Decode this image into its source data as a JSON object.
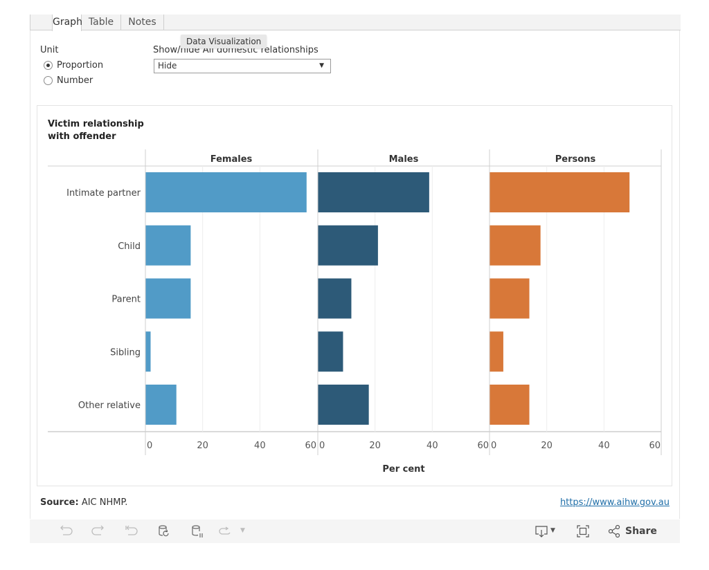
{
  "tabs": [
    {
      "label": "Graph",
      "active": true
    },
    {
      "label": "Table",
      "active": false
    },
    {
      "label": "Notes",
      "active": false
    }
  ],
  "tooltip": "Data Visualization",
  "controls": {
    "unit_label": "Unit",
    "unit_options": [
      {
        "label": "Proportion",
        "checked": true
      },
      {
        "label": "Number",
        "checked": false
      }
    ],
    "toggle_label": "Show/hide All domestic relationships",
    "toggle_value": "Hide"
  },
  "chart_data": {
    "type": "bar",
    "orientation": "horizontal",
    "row_header": "Victim relationship with offender",
    "row_header_lines": [
      "Victim relationship",
      "with offender"
    ],
    "categories": [
      "Intimate partner",
      "Child",
      "Parent",
      "Sibling",
      "Other relative"
    ],
    "series": [
      {
        "name": "Females",
        "color": "#519bc7",
        "values": [
          56.2,
          15.7,
          15.7,
          1.7,
          10.7
        ]
      },
      {
        "name": "Males",
        "color": "#2d5a78",
        "values": [
          38.8,
          20.9,
          11.6,
          8.7,
          17.7
        ]
      },
      {
        "name": "Persons",
        "color": "#d87839",
        "values": [
          48.8,
          17.7,
          13.8,
          4.7,
          13.8
        ]
      }
    ],
    "xlabel": "Per cent",
    "xlim": [
      0,
      60
    ],
    "xticks": [
      0,
      20,
      40,
      60
    ],
    "grid": true,
    "legend": "none"
  },
  "footer": {
    "source_label": "Source:",
    "source_text": "AIC NHMP.",
    "link_text": "https://www.aihw.gov.au"
  },
  "toolbar": {
    "icons": [
      "undo-icon",
      "redo-icon",
      "revert-icon",
      "refresh-data-icon",
      "pause-updates-icon",
      "replay-animation-icon"
    ],
    "share_label": "Share"
  }
}
